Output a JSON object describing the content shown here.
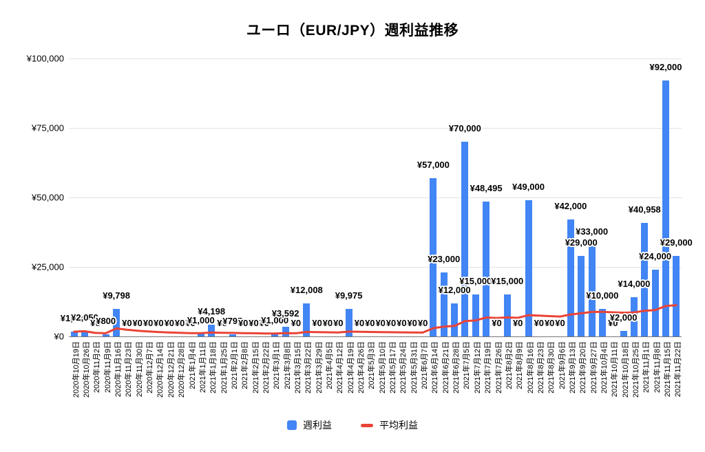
{
  "title": "ユーロ（EUR/JPY）週利益推移",
  "legend": {
    "weekly_profit": "週利益",
    "average_profit": "平均利益"
  },
  "colors": {
    "bar": "#4285F4",
    "line": "#EA4335",
    "grid": "#e2e2e2",
    "axis": "#757575",
    "text": "#000000",
    "background": "#ffffff"
  },
  "y_axis": {
    "tick_labels": [
      "¥0",
      "¥25,000",
      "¥50,000",
      "¥75,000",
      "¥100,000"
    ]
  },
  "chart_data": {
    "type": "bar",
    "title": "ユーロ（EUR/JPY）週利益推移",
    "xlabel": "",
    "ylabel": "",
    "ylim": [
      0,
      100000
    ],
    "grid": true,
    "legend_position": "bottom",
    "currency": "JPY",
    "data_label_format": "¥#,##0 shown above each bar",
    "y_ticks": {
      "labels": [
        "¥0",
        "¥25,000",
        "¥50,000",
        "¥75,000",
        "¥100,000"
      ],
      "values": [
        0,
        25000,
        50000,
        75000,
        100000
      ]
    },
    "categories": [
      "2020年10月19日",
      "2020年10月26日",
      "2020年11月2日",
      "2020年11月9日",
      "2020年11月16日",
      "2020年11月23日",
      "2020年11月30日",
      "2020年12月7日",
      "2020年12月14日",
      "2020年12月21日",
      "2020年12月28日",
      "2021年1月4日",
      "2021年1月11日",
      "2021年1月18日",
      "2021年1月25日",
      "2021年2月1日",
      "2021年2月8日",
      "2021年2月15日",
      "2021年2月22日",
      "2021年3月1日",
      "2021年3月8日",
      "2021年3月15日",
      "2021年3月22日",
      "2021年3月29日",
      "2021年4月5日",
      "2021年4月12日",
      "2021年4月19日",
      "2021年4月26日",
      "2021年5月3日",
      "2021年5月10日",
      "2021年5月17日",
      "2021年5月24日",
      "2021年5月31日",
      "2021年6月7日",
      "2021年6月14日",
      "2021年6月21日",
      "2021年6月28日",
      "2021年7月5日",
      "2021年7月12日",
      "2021年7月19日",
      "2021年7月26日",
      "2021年8月2日",
      "2021年8月9日",
      "2021年8月16日",
      "2021年8月23日",
      "2021年8月30日",
      "2021年9月6日",
      "2021年9月13日",
      "2021年9月20日",
      "2021年9月27日",
      "2021年10月4日",
      "2021年10月11日",
      "2021年10月18日",
      "2021年10月25日",
      "2021年11月1日",
      "2021年11月8日",
      "2021年11月15日",
      "2021年11月22日"
    ],
    "series": [
      {
        "name": "週利益",
        "type": "bar",
        "color": "#4285F4",
        "values": [
          1700,
          2050,
          0,
          800,
          9798,
          0,
          0,
          0,
          0,
          0,
          0,
          0,
          1000,
          4198,
          0,
          795,
          0,
          0,
          0,
          1000,
          3592,
          0,
          12008,
          0,
          0,
          0,
          9975,
          0,
          0,
          0,
          0,
          0,
          0,
          0,
          57000,
          23000,
          12000,
          70000,
          15000,
          48495,
          0,
          15000,
          0,
          49000,
          0,
          0,
          0,
          42000,
          29000,
          33000,
          10000,
          0,
          2000,
          14000,
          40958,
          24000,
          92000,
          29000
        ]
      },
      {
        "name": "平均利益",
        "type": "line",
        "color": "#EA4335",
        "derivation": "cumulative average of 週利益",
        "values": [
          1700,
          1875,
          1250,
          1138,
          2870,
          2391,
          2050,
          1794,
          1594,
          1435,
          1304,
          1196,
          1181,
          1396,
          1303,
          1271,
          1197,
          1130,
          1071,
          1067,
          1187,
          1133,
          1606,
          1539,
          1478,
          1421,
          1738,
          1676,
          1618,
          1564,
          1513,
          1466,
          1422,
          1380,
          2969,
          3525,
          3754,
          5498,
          5741,
          6810,
          6644,
          6843,
          6684,
          7646,
          7476,
          7313,
          7158,
          7884,
          8314,
          8808,
          8832,
          8662,
          8536,
          8637,
          9225,
          9489,
          10936,
          11248
        ]
      }
    ]
  }
}
